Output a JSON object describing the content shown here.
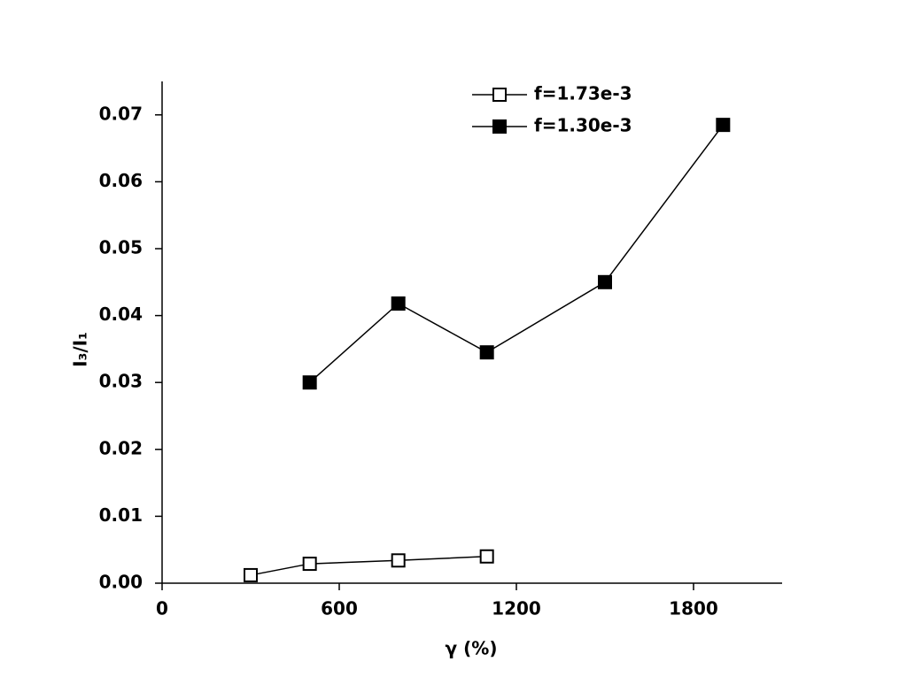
{
  "chart_data": {
    "type": "line",
    "x_label": "γ (%)",
    "y_label": "I₃/I₁",
    "xlim": [
      0,
      2100
    ],
    "xticks": [
      0,
      600,
      1200,
      1800
    ],
    "ylim": [
      0,
      0.075
    ],
    "yticks": [
      {
        "value": 0,
        "label": "0.00"
      },
      0.01,
      0.02,
      0.03,
      0.04,
      0.05,
      0.06,
      0.07
    ],
    "series": [
      {
        "name": "f=1.73e-3",
        "color": "#000000",
        "marker": "open-square",
        "x": [
          300,
          500,
          800,
          1100
        ],
        "values": [
          0.0012,
          0.0029,
          0.0034,
          0.004
        ]
      },
      {
        "name": "f=1.30e-3",
        "color": "#000000",
        "marker": "filled-square",
        "x": [
          500,
          800,
          1100,
          1500,
          1900
        ],
        "values": [
          0.03,
          0.0418,
          0.0345,
          0.045,
          0.0685
        ]
      }
    ]
  }
}
